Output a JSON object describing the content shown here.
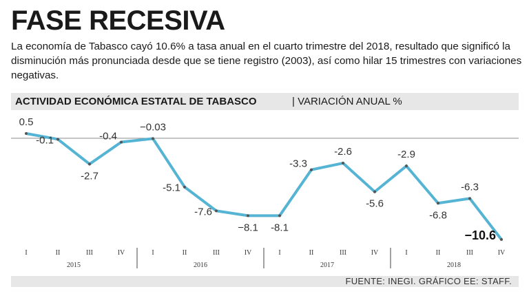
{
  "header": {
    "title": "FASE RECESIVA",
    "description": "La economía de Tabasco cayó 10.6% a tasa anual en el cuarto trimestre del 2018, resultado que significó la disminución más pronunciada desde que se tiene registro (2003), así como hilar 15 trimestres con variaciones negativas."
  },
  "band": {
    "bold": "ACTIVIDAD ECONÓMICA ESTATAL DE TABASCO",
    "light": "| VARIACIÓN ANUAL %"
  },
  "footer": {
    "source": "FUENTE: INEGI. GRÁFICO EE: STAFF."
  },
  "colors": {
    "line": "#55b4d4",
    "point": "#555555",
    "band": "#e7e7e7",
    "baseline": "#8a8a8a"
  },
  "chart_data": {
    "type": "line",
    "title": "ACTIVIDAD ECONÓMICA ESTATAL DE TABASCO | VARIACIÓN ANUAL %",
    "quarters": [
      "I",
      "II",
      "III",
      "IV",
      "I",
      "II",
      "III",
      "IV",
      "I",
      "II",
      "III",
      "IV",
      "I",
      "II",
      "III",
      "IV"
    ],
    "years": [
      "2015",
      "2016",
      "2017",
      "2018"
    ],
    "series": [
      {
        "values": [
          0.5,
          -0.1,
          -2.7,
          -0.4,
          -0.03,
          -5.1,
          -7.6,
          -8.1,
          -8.1,
          -3.3,
          -2.6,
          -5.6,
          -2.9,
          -6.8,
          -6.3,
          -10.6
        ],
        "labels": [
          "0.5",
          "-0.1",
          "-2.7",
          "-0.4",
          "−0.03",
          "-5.1",
          "-7.6",
          "−8.1",
          "-8.1",
          "-3.3",
          "-2.6",
          "-5.6",
          "-2.9",
          "-6.8",
          "-6.3",
          "−10.6"
        ]
      }
    ],
    "baseline": 0,
    "ylim": [
      -10.6,
      0.5
    ],
    "grid": false
  }
}
